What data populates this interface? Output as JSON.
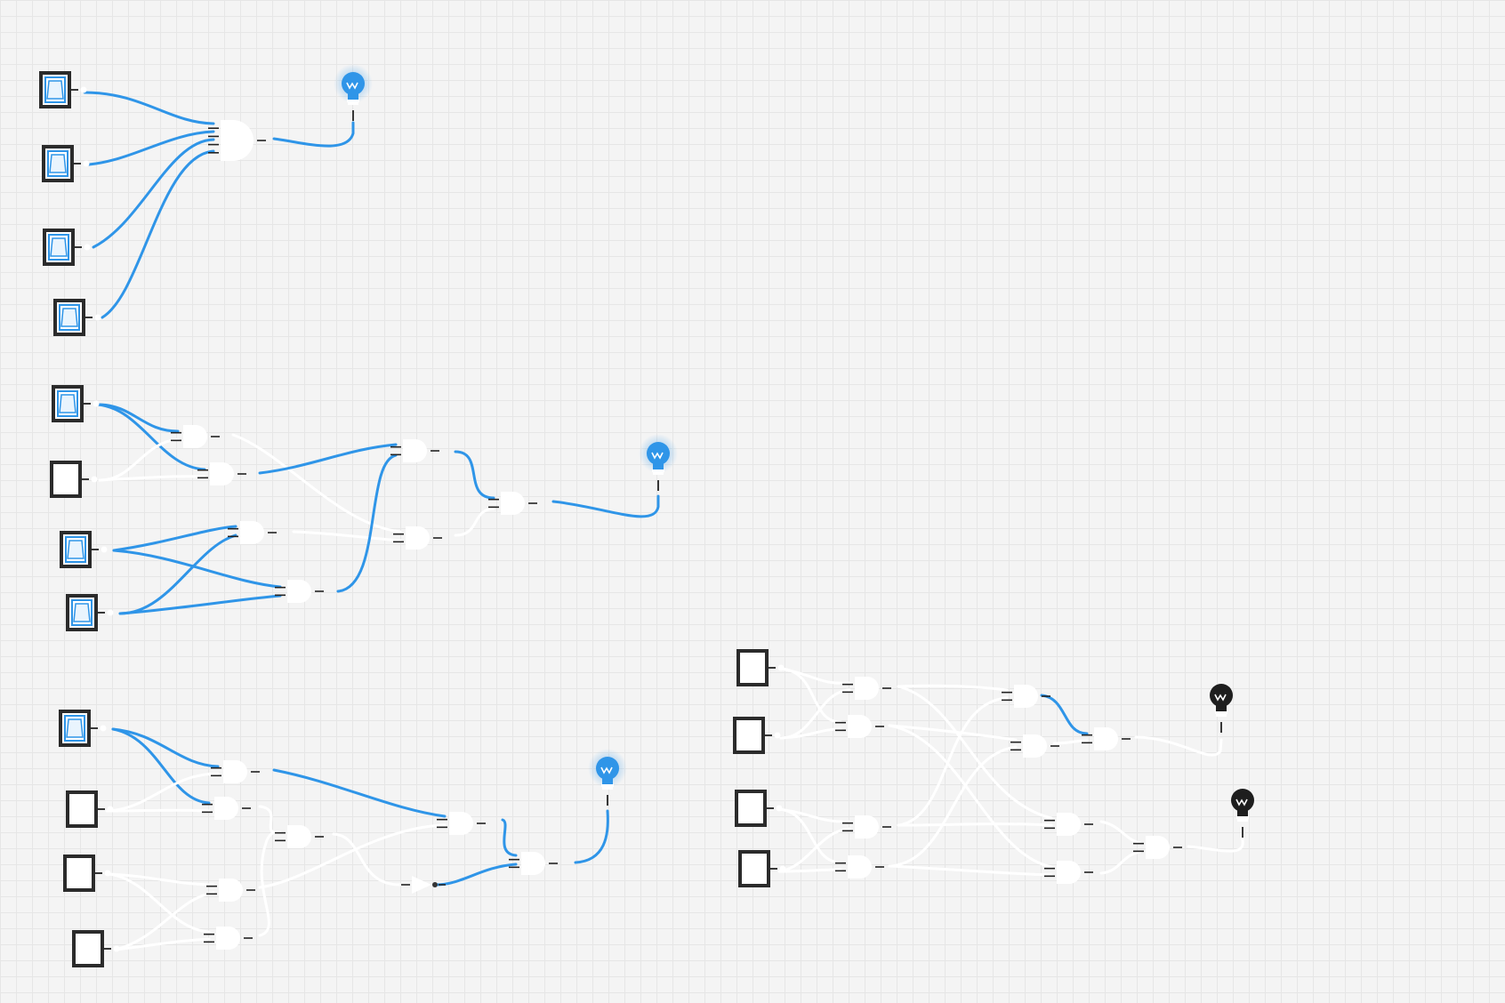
{
  "colors": {
    "wire_on": "#2f95e8",
    "wire_off": "#ffffff",
    "bulb_on": "#2f95e8",
    "bulb_off": "#1e1e1e",
    "switch_frame": "#2b2b2b",
    "background": "#f4f4f4",
    "grid": "#e6e6e6"
  },
  "circuits": [
    {
      "id": "circuit-1",
      "switch_states": [
        "on",
        "on",
        "on",
        "on"
      ],
      "gates": [
        "and-4-input"
      ],
      "outputs": [
        "on"
      ]
    },
    {
      "id": "circuit-2",
      "switch_states": [
        "on",
        "off",
        "on",
        "on"
      ],
      "gates": [
        "and",
        "and",
        "and",
        "and",
        "and",
        "and",
        "and"
      ],
      "outputs": [
        "on"
      ]
    },
    {
      "id": "circuit-3",
      "switch_states": [
        "on",
        "off",
        "off",
        "off"
      ],
      "gates": [
        "and",
        "and",
        "and",
        "and",
        "and",
        "not",
        "and"
      ],
      "outputs": [
        "on"
      ]
    },
    {
      "id": "circuit-4",
      "switch_states": [
        "off",
        "off",
        "off",
        "off"
      ],
      "gates": [
        "and",
        "and",
        "and",
        "and",
        "and",
        "and",
        "and",
        "and",
        "and",
        "and"
      ],
      "outputs": [
        "off",
        "off"
      ]
    }
  ],
  "icons": {
    "switch": "toggle-switch-icon",
    "bulb": "light-bulb-icon",
    "gate": "and-gate-icon",
    "not_gate": "not-gate-icon"
  }
}
